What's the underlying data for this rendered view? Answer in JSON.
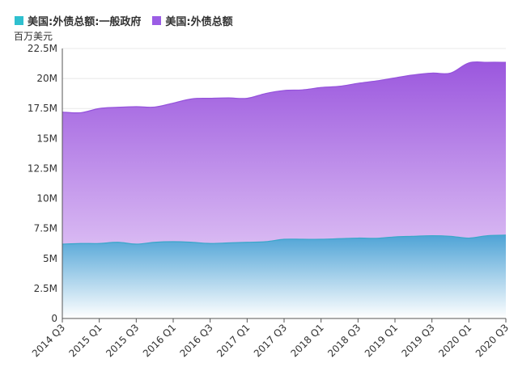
{
  "legend": {
    "series_a": "美国:外债总额:一般政府",
    "series_b": "美国:外债总额",
    "color_a": "#2fc0cf",
    "color_b": "#9b5de5"
  },
  "unit": "百万美元",
  "chart_data": {
    "type": "area",
    "ylabel": "百万美元",
    "ylim": [
      0,
      22500000
    ],
    "yticks": [
      "0",
      "2.5M",
      "5M",
      "7.5M",
      "10M",
      "12.5M",
      "15M",
      "17.5M",
      "20M",
      "22.5M"
    ],
    "x": [
      "2014 Q3",
      "2014 Q4",
      "2015 Q1",
      "2015 Q2",
      "2015 Q3",
      "2015 Q4",
      "2016 Q1",
      "2016 Q2",
      "2016 Q3",
      "2016 Q4",
      "2017 Q1",
      "2017 Q2",
      "2017 Q3",
      "2017 Q4",
      "2018 Q1",
      "2018 Q2",
      "2018 Q3",
      "2018 Q4",
      "2019 Q1",
      "2019 Q2",
      "2019 Q3",
      "2019 Q4",
      "2020 Q1",
      "2020 Q2",
      "2020 Q3"
    ],
    "xtick_labels": [
      "2014 Q3",
      "2015 Q1",
      "2015 Q3",
      "2016 Q1",
      "2016 Q3",
      "2017 Q1",
      "2017 Q3",
      "2018 Q1",
      "2018 Q3",
      "2019 Q1",
      "2019 Q3",
      "2020 Q1",
      "2020 Q3"
    ],
    "series": [
      {
        "name": "美国:外债总额:一般政府",
        "values": [
          6200000,
          6250000,
          6250000,
          6350000,
          6200000,
          6350000,
          6400000,
          6350000,
          6250000,
          6300000,
          6350000,
          6400000,
          6600000,
          6600000,
          6600000,
          6650000,
          6700000,
          6680000,
          6800000,
          6850000,
          6900000,
          6850000,
          6700000,
          6900000,
          6950000
        ]
      },
      {
        "name": "美国:外债总额",
        "values": [
          17200000,
          17150000,
          17500000,
          17600000,
          17650000,
          17620000,
          17950000,
          18300000,
          18350000,
          18380000,
          18350000,
          18750000,
          19000000,
          19050000,
          19250000,
          19350000,
          19600000,
          19800000,
          20050000,
          20300000,
          20450000,
          20450000,
          21300000,
          21350000,
          21350000
        ]
      }
    ]
  }
}
